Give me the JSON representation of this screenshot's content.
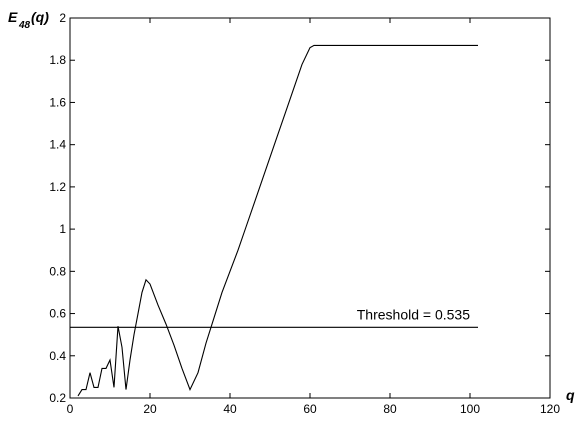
{
  "chart_data": {
    "type": "line",
    "ylabel": {
      "main": "E",
      "sub": "48",
      "suffix": "(q)"
    },
    "xlabel": "q",
    "xlim": [
      0,
      120
    ],
    "ylim": [
      0.2,
      2.0
    ],
    "xticks": [
      0,
      20,
      40,
      60,
      80,
      100,
      120
    ],
    "xtick_labels": [
      "0",
      "20",
      "40",
      "60",
      "80",
      "100",
      "120"
    ],
    "yticks": [
      0.2,
      0.4,
      0.6,
      0.8,
      1.0,
      1.2,
      1.4,
      1.6,
      1.8,
      2.0
    ],
    "ytick_labels": [
      "0.2",
      "0.4",
      "0.6",
      "0.8",
      "1",
      "1.2",
      "1.4",
      "1.6",
      "1.8",
      "2"
    ],
    "grid": false,
    "series": [
      {
        "x": [
          2,
          3,
          4,
          5,
          6,
          7,
          8,
          9,
          10,
          11,
          12,
          13,
          14,
          15,
          16,
          17,
          18,
          19,
          20,
          22,
          24,
          26,
          28,
          30,
          32,
          34,
          36,
          38,
          40,
          42,
          44,
          46,
          48,
          50,
          52,
          54,
          56,
          58,
          60,
          61,
          62,
          70,
          80,
          90,
          100,
          102
        ],
        "y": [
          0.21,
          0.24,
          0.24,
          0.32,
          0.25,
          0.25,
          0.34,
          0.34,
          0.38,
          0.25,
          0.54,
          0.44,
          0.24,
          0.38,
          0.5,
          0.6,
          0.7,
          0.76,
          0.74,
          0.64,
          0.55,
          0.45,
          0.34,
          0.24,
          0.32,
          0.46,
          0.58,
          0.7,
          0.8,
          0.9,
          1.01,
          1.12,
          1.23,
          1.34,
          1.45,
          1.56,
          1.67,
          1.78,
          1.86,
          1.87,
          1.87,
          1.87,
          1.87,
          1.87,
          1.87,
          1.87
        ],
        "color": "#000000"
      },
      {
        "x": [
          0,
          102
        ],
        "y": [
          0.535,
          0.535
        ],
        "color": "#000000"
      }
    ],
    "annotations": [
      {
        "text": "Threshold = 0.535",
        "x": 100,
        "y": 0.535
      }
    ]
  }
}
